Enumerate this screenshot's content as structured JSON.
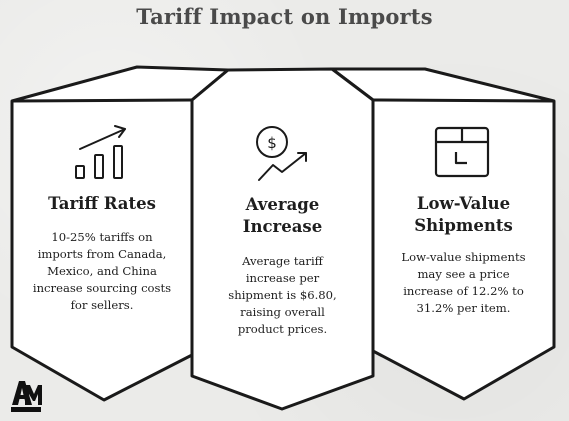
{
  "title": "Tariff Impact on Imports",
  "panels": [
    {
      "icon": "bar-chart-trend-icon",
      "title_lines": [
        "Tariff Rates"
      ],
      "body_lines": [
        "10-25% tariffs on",
        "imports from Canada,",
        "Mexico, and China",
        "increase sourcing costs",
        "for sellers."
      ]
    },
    {
      "icon": "dollar-growth-icon",
      "title_lines": [
        "Average",
        "Increase"
      ],
      "body_lines": [
        "Average tariff",
        "increase per",
        "shipment is $6.80,",
        "raising overall",
        "product prices."
      ]
    },
    {
      "icon": "package-box-icon",
      "title_lines": [
        "Low-Value",
        "Shipments"
      ],
      "body_lines": [
        "Low-value shipments",
        "may see a price",
        "increase of 12.2% to",
        "31.2% per item."
      ]
    }
  ],
  "logo": {
    "icon": "am-monogram-logo",
    "text": "AM"
  }
}
